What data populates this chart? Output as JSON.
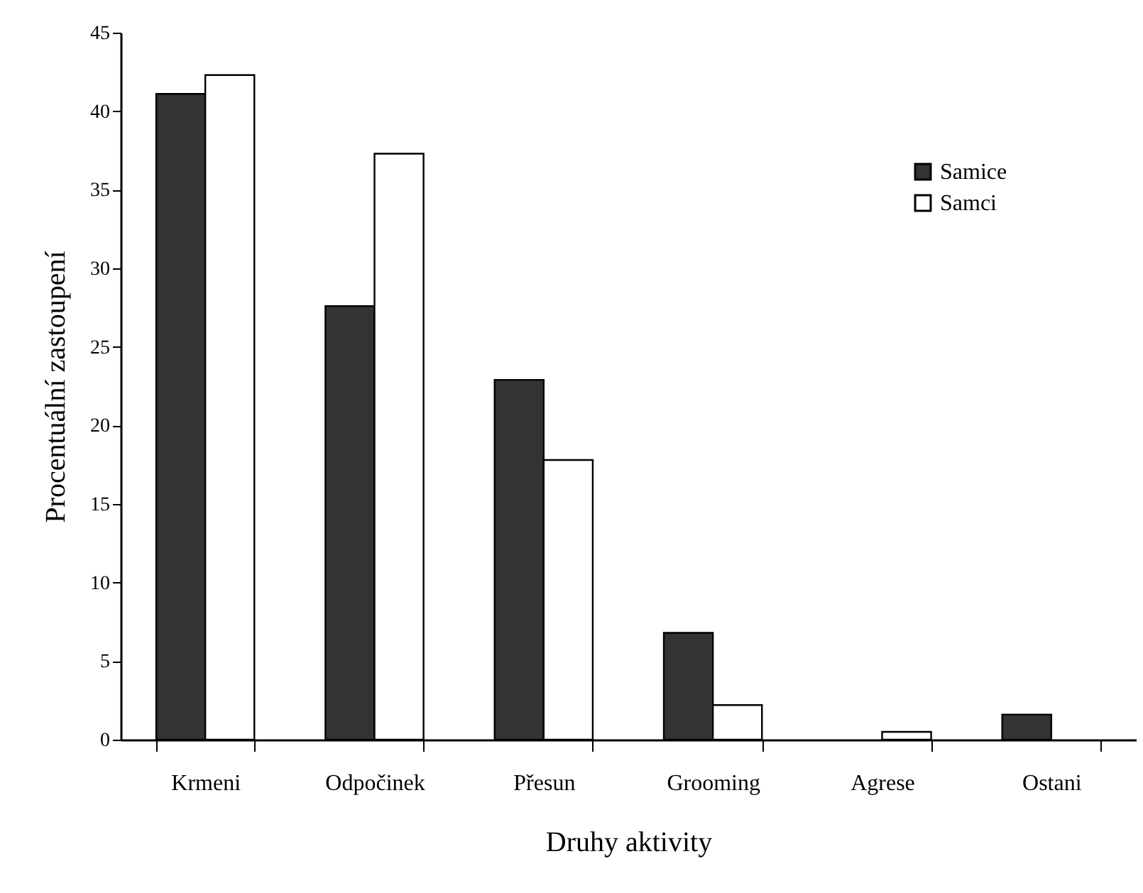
{
  "chart_data": {
    "type": "bar",
    "xlabel": "Druhy aktivity",
    "ylabel": "Procentuální zastoupení",
    "categories": [
      "Krmeni",
      "Odpočinek",
      "Přesun",
      "Grooming",
      "Agrese",
      "Ostani"
    ],
    "series": [
      {
        "name": "Samice",
        "color": "#333333",
        "values": [
          41.1,
          27.6,
          22.9,
          6.8,
          null,
          1.6
        ]
      },
      {
        "name": "Samci",
        "color": "#ffffff",
        "values": [
          42.3,
          37.3,
          17.8,
          2.2,
          0.5,
          null
        ]
      }
    ],
    "ylim": [
      0,
      45
    ],
    "yticks": [
      0,
      5,
      10,
      15,
      20,
      25,
      30,
      35,
      40,
      45
    ],
    "legend": "top right"
  }
}
